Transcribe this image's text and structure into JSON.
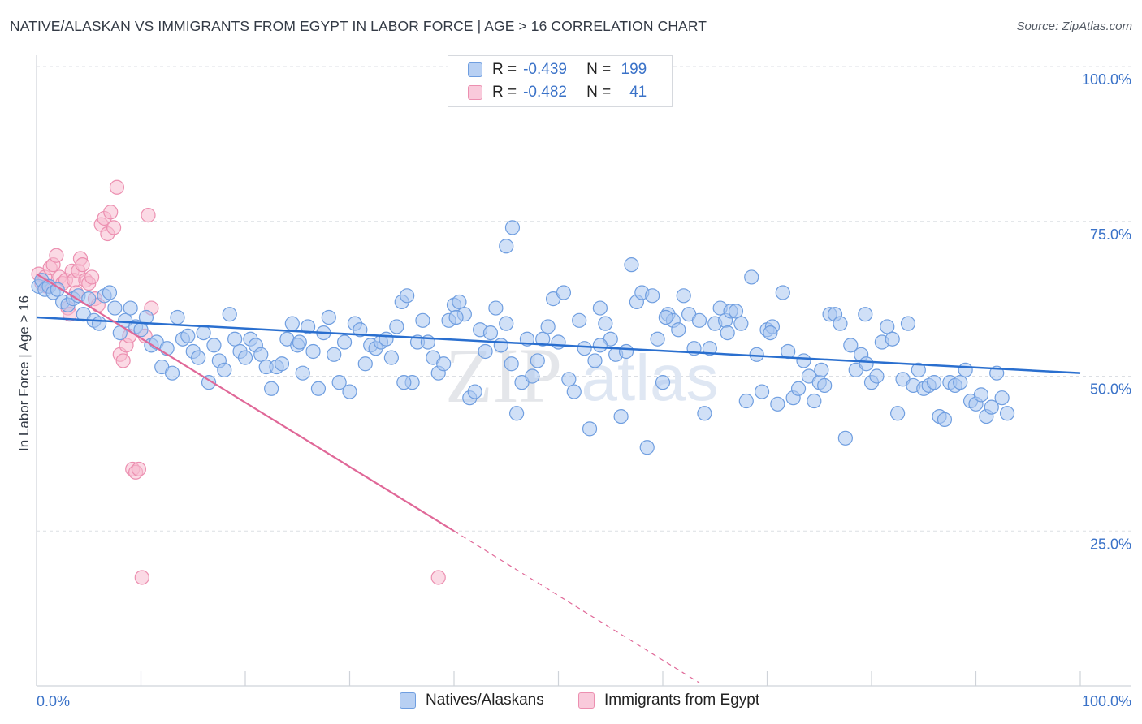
{
  "header": {
    "title": "NATIVE/ALASKAN VS IMMIGRANTS FROM EGYPT IN LABOR FORCE | AGE > 16 CORRELATION CHART",
    "source": "Source: ZipAtlas.com"
  },
  "legend": {
    "series1": {
      "r_label": "R =",
      "r_value": "-0.439",
      "n_label": "N =",
      "n_value": "199"
    },
    "series2": {
      "r_label": "R =",
      "r_value": "-0.482",
      "n_label": "N =",
      "n_value": "41"
    }
  },
  "colors": {
    "blue_fill": "#a9c6f0",
    "blue_stroke": "#6f9ee0",
    "blue_line": "#2a6fcf",
    "pink_fill": "#f7bcd0",
    "pink_stroke": "#ec8fb0",
    "pink_line": "#e06898",
    "axis_label": "#3a72c8",
    "grid": "#dcdfe4"
  },
  "chart_data": {
    "type": "scatter",
    "title": "NATIVE/ALASKAN VS IMMIGRANTS FROM EGYPT IN LABOR FORCE | AGE > 16 CORRELATION CHART",
    "xlabel": "",
    "ylabel": "In Labor Force | Age > 16",
    "xlim": [
      0,
      100
    ],
    "ylim": [
      0,
      100
    ],
    "x_tick_labels": [
      "0.0%",
      "100.0%"
    ],
    "y_ticks": [
      25,
      50,
      75,
      100
    ],
    "y_tick_labels": [
      "25.0%",
      "50.0%",
      "75.0%",
      "100.0%"
    ],
    "grid": true,
    "legend_position": "top-center",
    "watermark": "ZIPatlas",
    "series": [
      {
        "name": "Natives/Alaskans",
        "color": "#6f9ee0",
        "trend": {
          "x0": 0,
          "y0": 59.5,
          "x1": 100,
          "y1": 50.5
        },
        "points": [
          [
            0.2,
            64.5
          ],
          [
            0.5,
            65.5
          ],
          [
            0.8,
            64
          ],
          [
            1.2,
            64.5
          ],
          [
            1.6,
            63.5
          ],
          [
            2.0,
            64
          ],
          [
            2.5,
            62
          ],
          [
            3.0,
            61.5
          ],
          [
            3.5,
            62.5
          ],
          [
            4.0,
            63
          ],
          [
            4.5,
            60
          ],
          [
            5.0,
            62.5
          ],
          [
            5.5,
            59
          ],
          [
            6.0,
            58.5
          ],
          [
            6.5,
            63
          ],
          [
            7.0,
            63.5
          ],
          [
            7.5,
            61
          ],
          [
            8.0,
            57
          ],
          [
            8.5,
            59
          ],
          [
            9.0,
            61
          ],
          [
            9.5,
            58
          ],
          [
            10.0,
            57.5
          ],
          [
            10.5,
            59.5
          ],
          [
            11.0,
            55
          ],
          [
            11.5,
            55.5
          ],
          [
            12.0,
            51.5
          ],
          [
            12.5,
            54.5
          ],
          [
            13.0,
            50.5
          ],
          [
            13.5,
            59.5
          ],
          [
            14.0,
            56
          ],
          [
            14.5,
            56.5
          ],
          [
            15.0,
            54
          ],
          [
            15.5,
            53
          ],
          [
            16.0,
            57
          ],
          [
            16.5,
            49
          ],
          [
            17.0,
            55
          ],
          [
            17.5,
            52.5
          ],
          [
            18.0,
            51
          ],
          [
            18.5,
            60
          ],
          [
            19.0,
            56
          ],
          [
            19.5,
            54
          ],
          [
            20.0,
            53
          ],
          [
            20.5,
            56
          ],
          [
            21.0,
            55
          ],
          [
            21.5,
            53.5
          ],
          [
            22.0,
            51.5
          ],
          [
            22.5,
            48
          ],
          [
            23.0,
            51.5
          ],
          [
            23.5,
            52
          ],
          [
            24.0,
            56
          ],
          [
            24.5,
            58.5
          ],
          [
            25.0,
            55
          ],
          [
            25.5,
            50.5
          ],
          [
            26.0,
            58
          ],
          [
            26.5,
            54
          ],
          [
            27.0,
            48
          ],
          [
            27.5,
            57
          ],
          [
            28.0,
            59.5
          ],
          [
            28.5,
            53.5
          ],
          [
            29.0,
            49
          ],
          [
            29.5,
            55.5
          ],
          [
            30.0,
            47.5
          ],
          [
            30.5,
            58.5
          ],
          [
            31.0,
            57.5
          ],
          [
            31.5,
            52
          ],
          [
            32.0,
            55
          ],
          [
            32.5,
            54.5
          ],
          [
            33.0,
            55.5
          ],
          [
            33.5,
            56
          ],
          [
            34.0,
            53
          ],
          [
            34.5,
            58
          ],
          [
            35.0,
            62
          ],
          [
            35.5,
            63
          ],
          [
            36.0,
            49
          ],
          [
            36.5,
            55.5
          ],
          [
            37.0,
            59
          ],
          [
            37.5,
            55.5
          ],
          [
            38.0,
            53
          ],
          [
            38.5,
            50.5
          ],
          [
            39.0,
            52
          ],
          [
            39.5,
            59
          ],
          [
            40.0,
            61.5
          ],
          [
            40.5,
            62
          ],
          [
            41.0,
            60
          ],
          [
            41.5,
            46.5
          ],
          [
            42.0,
            47.5
          ],
          [
            42.5,
            57.5
          ],
          [
            43.0,
            54
          ],
          [
            43.5,
            57
          ],
          [
            44.0,
            61
          ],
          [
            44.5,
            55
          ],
          [
            45.0,
            58.5
          ],
          [
            45.5,
            52
          ],
          [
            46.0,
            44
          ],
          [
            46.5,
            49
          ],
          [
            47.0,
            56
          ],
          [
            47.5,
            50
          ],
          [
            48.0,
            52.5
          ],
          [
            48.5,
            56
          ],
          [
            49.0,
            58
          ],
          [
            49.5,
            62.5
          ],
          [
            50.0,
            55.5
          ],
          [
            50.5,
            63.5
          ],
          [
            51.0,
            49.5
          ],
          [
            51.5,
            47.5
          ],
          [
            52.0,
            59
          ],
          [
            52.5,
            54.5
          ],
          [
            53.0,
            41.5
          ],
          [
            53.5,
            52.5
          ],
          [
            54.0,
            61
          ],
          [
            54.5,
            58.5
          ],
          [
            55.0,
            56
          ],
          [
            55.5,
            53.5
          ],
          [
            56.0,
            43.5
          ],
          [
            56.5,
            54
          ],
          [
            57.0,
            68
          ],
          [
            57.5,
            62
          ],
          [
            58.0,
            63.5
          ],
          [
            58.5,
            38.5
          ],
          [
            59.0,
            63
          ],
          [
            59.5,
            56
          ],
          [
            60.0,
            49
          ],
          [
            60.5,
            60
          ],
          [
            61.0,
            59
          ],
          [
            61.5,
            57.5
          ],
          [
            62.0,
            63
          ],
          [
            62.5,
            60
          ],
          [
            63.0,
            54.5
          ],
          [
            63.5,
            59
          ],
          [
            64.0,
            44
          ],
          [
            64.5,
            54.5
          ],
          [
            65.0,
            58.5
          ],
          [
            65.5,
            61
          ],
          [
            66.0,
            59
          ],
          [
            66.5,
            60.5
          ],
          [
            67.0,
            60.5
          ],
          [
            67.5,
            58.5
          ],
          [
            68.0,
            46
          ],
          [
            68.5,
            66
          ],
          [
            69.0,
            53.5
          ],
          [
            69.5,
            47.5
          ],
          [
            70.0,
            57.5
          ],
          [
            70.5,
            58
          ],
          [
            71.0,
            45.5
          ],
          [
            71.5,
            63.5
          ],
          [
            72.0,
            54
          ],
          [
            72.5,
            46.5
          ],
          [
            73.0,
            48
          ],
          [
            73.5,
            52.5
          ],
          [
            74.0,
            50
          ],
          [
            74.5,
            46
          ],
          [
            75.0,
            49
          ],
          [
            75.5,
            48.5
          ],
          [
            76.0,
            60
          ],
          [
            76.5,
            60
          ],
          [
            77.0,
            58.5
          ],
          [
            77.5,
            40
          ],
          [
            78.0,
            55
          ],
          [
            78.5,
            51
          ],
          [
            79.0,
            53.5
          ],
          [
            79.5,
            52
          ],
          [
            80.0,
            49
          ],
          [
            80.5,
            50
          ],
          [
            81.0,
            55.5
          ],
          [
            81.5,
            58
          ],
          [
            82.0,
            56
          ],
          [
            82.5,
            44
          ],
          [
            83.0,
            49.5
          ],
          [
            83.5,
            58.5
          ],
          [
            84.0,
            48.5
          ],
          [
            84.5,
            51
          ],
          [
            85.0,
            48
          ],
          [
            85.5,
            48.5
          ],
          [
            86.0,
            49
          ],
          [
            86.5,
            43.5
          ],
          [
            87.0,
            43
          ],
          [
            87.5,
            49
          ],
          [
            88.0,
            48.5
          ],
          [
            88.5,
            49
          ],
          [
            89.0,
            51
          ],
          [
            89.5,
            46
          ],
          [
            90.0,
            45.5
          ],
          [
            90.5,
            47
          ],
          [
            91.0,
            43.5
          ],
          [
            91.5,
            45
          ],
          [
            92.0,
            50.5
          ],
          [
            92.5,
            46.5
          ],
          [
            93.0,
            44
          ],
          [
            54.0,
            55
          ],
          [
            45.0,
            71
          ],
          [
            45.6,
            74
          ],
          [
            35.2,
            49
          ],
          [
            40.2,
            59.5
          ],
          [
            25.2,
            55.5
          ],
          [
            60.3,
            59.5
          ],
          [
            66.2,
            57
          ],
          [
            70.3,
            57
          ],
          [
            75.2,
            51
          ],
          [
            79.4,
            60
          ]
        ]
      },
      {
        "name": "Immigrants from Egypt",
        "color": "#ec8fb0",
        "trend": {
          "x0": 0,
          "y0": 66.5,
          "x1": 40,
          "y1": 25
        },
        "trend_dashed": {
          "x0": 40,
          "y0": 25,
          "x1": 63.5,
          "y1": 0.5
        },
        "points": [
          [
            0.2,
            66.5
          ],
          [
            0.5,
            65
          ],
          [
            0.8,
            66
          ],
          [
            1.0,
            64.5
          ],
          [
            1.3,
            67.5
          ],
          [
            1.6,
            68
          ],
          [
            1.9,
            69.5
          ],
          [
            2.2,
            66
          ],
          [
            2.5,
            65
          ],
          [
            2.8,
            65.5
          ],
          [
            3.0,
            61
          ],
          [
            3.2,
            60
          ],
          [
            3.4,
            67
          ],
          [
            3.6,
            65.5
          ],
          [
            3.8,
            63.5
          ],
          [
            4.0,
            67
          ],
          [
            4.2,
            69
          ],
          [
            4.4,
            68
          ],
          [
            4.7,
            65.5
          ],
          [
            5.0,
            65
          ],
          [
            5.3,
            66
          ],
          [
            5.6,
            62.5
          ],
          [
            5.9,
            61.5
          ],
          [
            6.2,
            74.5
          ],
          [
            6.5,
            75.5
          ],
          [
            6.8,
            73
          ],
          [
            7.1,
            76.5
          ],
          [
            7.4,
            74
          ],
          [
            7.7,
            80.5
          ],
          [
            8.0,
            53.5
          ],
          [
            8.3,
            52.5
          ],
          [
            8.6,
            55
          ],
          [
            8.9,
            56.5
          ],
          [
            9.2,
            35
          ],
          [
            9.5,
            34.5
          ],
          [
            9.8,
            35
          ],
          [
            10.1,
            17.5
          ],
          [
            10.4,
            56.5
          ],
          [
            10.7,
            76
          ],
          [
            11.0,
            61
          ],
          [
            38.5,
            17.5
          ]
        ]
      }
    ]
  },
  "bottom_legend": {
    "series1_label": "Natives/Alaskans",
    "series2_label": "Immigrants from Egypt"
  }
}
